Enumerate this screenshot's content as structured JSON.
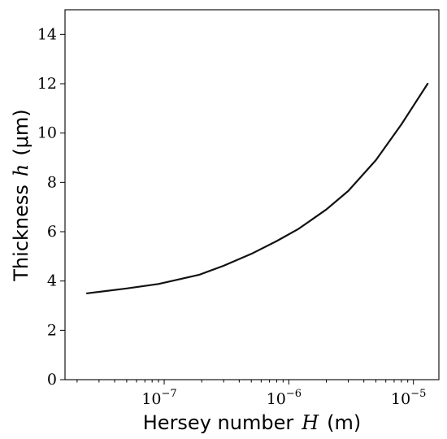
{
  "chart_data": {
    "type": "line",
    "xscale": "log",
    "xlim": [
      1.6e-08,
      1.6e-05
    ],
    "ylim": [
      0,
      15
    ],
    "xlabel": "Hersey number",
    "xlabel_symbol": "H",
    "xlabel_unit": "(m)",
    "ylabel": "Thickness",
    "ylabel_symbol": "h",
    "ylabel_unit": "(μm)",
    "x_ticks": [
      {
        "value": 1e-07,
        "base": "10",
        "exp": "−7"
      },
      {
        "value": 1e-06,
        "base": "10",
        "exp": "−6"
      },
      {
        "value": 1e-05,
        "base": "10",
        "exp": "−5"
      }
    ],
    "y_ticks": [
      0,
      2,
      4,
      6,
      8,
      10,
      12,
      14
    ],
    "grid": false,
    "series": [
      {
        "color": "#111111",
        "x": [
          2.4e-08,
          5e-08,
          9e-08,
          1.9e-07,
          3e-07,
          5e-07,
          8e-07,
          1.2e-06,
          2e-06,
          3e-06,
          5e-06,
          8e-06,
          1.3e-05
        ],
        "y": [
          3.5,
          3.7,
          3.88,
          4.25,
          4.62,
          5.1,
          5.62,
          6.12,
          6.9,
          7.65,
          8.9,
          10.35,
          12.0
        ]
      }
    ]
  }
}
